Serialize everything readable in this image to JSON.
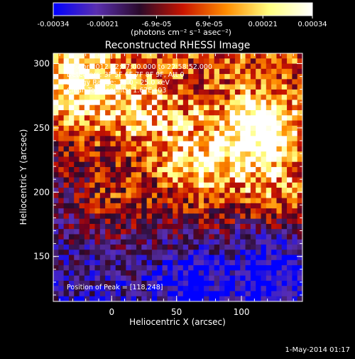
{
  "chart_data": {
    "type": "heatmap",
    "title": "Reconstructed RHESSI Image",
    "xlabel": "Heliocentric X (arcsec)",
    "ylabel": "Heliocentric Y (arcsec)",
    "xlim": [
      -45,
      147
    ],
    "ylim": [
      115,
      308
    ],
    "xticks": [
      0,
      50,
      100
    ],
    "yticks": [
      150,
      200,
      250,
      300
    ],
    "colorbar": {
      "min": -0.00034,
      "max": 0.00034,
      "tick_values": [
        -0.00034,
        -0.00021,
        -6.9e-05,
        6.9e-05,
        0.00021,
        0.00034
      ],
      "tick_labels": [
        "-0.00034",
        "-0.00021",
        "-6.9e-05",
        "6.9e-05",
        "0.00021",
        "0.00034"
      ],
      "units_label": "(photons cm⁻² s⁻¹ asec⁻²)",
      "colors": [
        "#0000ff",
        "#5a2fb0",
        "#2a0a2a",
        "#c81400",
        "#ff8c00",
        "#ffff80",
        "#ffffff"
      ]
    },
    "annotations": {
      "time": "12-Apr-2012 22:57:00.000 to 22:58:52.000",
      "detectors": "Detectors: 3F 5F 6F 7F 8F 9F, Att 0",
      "energy": "Energy Range: 12.0 - 25.0 keV",
      "clean": "Clean      Total counts: 1.67E+03",
      "peak": "Position of Peak = [118,248]"
    },
    "peak": {
      "x": 118,
      "y": 248
    }
  },
  "footer": {
    "timestamp": "1-May-2014 01:17"
  }
}
